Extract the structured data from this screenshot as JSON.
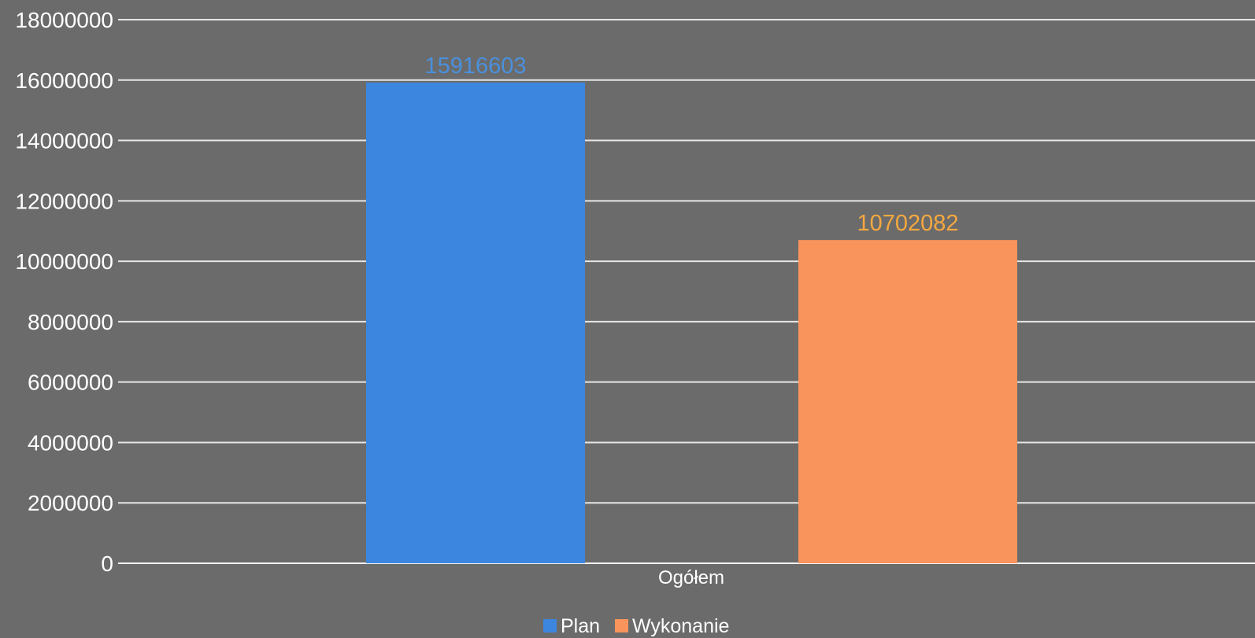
{
  "chart_data": {
    "type": "bar",
    "categories": [
      "Ogółem"
    ],
    "series": [
      {
        "name": "Plan",
        "values": [
          15916603
        ],
        "color": "#3d86df",
        "label_color": "#4a90dc"
      },
      {
        "name": "Wykonanie",
        "values": [
          10702082
        ],
        "color": "#f8945c",
        "label_color": "#f5a83f"
      }
    ],
    "ylim": [
      0,
      18000000
    ],
    "yticks": [
      "0",
      "2000000",
      "4000000",
      "6000000",
      "8000000",
      "10000000",
      "12000000",
      "14000000",
      "16000000",
      "18000000"
    ],
    "ytick_values": [
      0,
      2000000,
      4000000,
      6000000,
      8000000,
      10000000,
      12000000,
      14000000,
      16000000,
      18000000
    ],
    "data_labels": [
      "15916603",
      "10702082"
    ],
    "grid": true,
    "legend_position": "bottom",
    "background_color": "#6b6b6b"
  }
}
